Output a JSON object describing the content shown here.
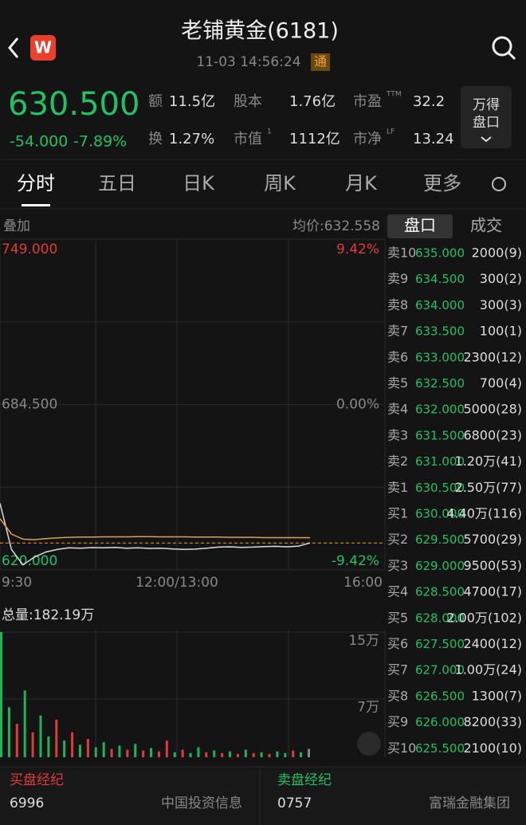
{
  "header": {
    "title": "老铺黄金(6181)",
    "time": "11-03 14:56:24",
    "badge": "通"
  },
  "quote": {
    "price": "630.500",
    "change": "-54.000",
    "change_pct": "-7.89%",
    "stats": [
      {
        "label": "额",
        "value": "11.5亿"
      },
      {
        "label": "股本",
        "value": "1.76亿"
      },
      {
        "label": "市盈",
        "sup": "TTM",
        "value": "32.2"
      },
      {
        "label": "换",
        "value": "1.27%"
      },
      {
        "label": "市值",
        "sup": "1",
        "value": "1112亿"
      },
      {
        "label": "市净",
        "sup": "LF",
        "value": "13.24"
      }
    ],
    "button": [
      "万得",
      "盘口"
    ]
  },
  "tabs": [
    "分时",
    "五日",
    "日K",
    "周K",
    "月K",
    "更多"
  ],
  "chart_data": [
    {
      "type": "line",
      "overlay_label": "叠加",
      "avg_label": "均价:632.558",
      "ylim": [
        620,
        749
      ],
      "yticks": [
        {
          "value": 749,
          "label": "749.000"
        },
        {
          "value": 684.5,
          "label": "684.500"
        },
        {
          "value": 620,
          "label": "620.000"
        }
      ],
      "pct_labels": [
        "9.42%",
        "0.00%",
        "-9.42%"
      ],
      "x_labels": [
        "9:30",
        "12:00/13:00",
        "16:00"
      ],
      "ref_line": {
        "value": 630.5,
        "color": "#f39c12"
      },
      "series": [
        {
          "color": "#dcdcdc",
          "values": [
            646,
            628,
            622,
            625,
            627,
            628,
            628.6,
            628.5,
            628.7,
            628.6,
            628.8,
            628.5,
            628.6,
            628.4,
            628.5,
            628.2,
            628.0,
            628.1,
            628.5,
            628.9,
            629.0,
            628.8,
            628.9,
            629.1,
            629.2,
            629.0,
            629.3,
            630.5
          ]
        },
        {
          "color": "#d9a15a",
          "values": [
            640,
            634,
            632,
            631.8,
            632.2,
            632.5,
            632.7,
            632.8,
            632.8,
            632.9,
            632.9,
            632.9,
            633.0,
            633.0,
            632.9,
            632.9,
            632.9,
            632.8,
            632.8,
            632.8,
            632.7,
            632.7,
            632.7,
            632.6,
            632.6,
            632.6,
            632.6,
            632.558
          ]
        }
      ]
    },
    {
      "type": "bar",
      "title": "总量:182.19万",
      "ylim": [
        0,
        150000
      ],
      "yticks": [
        {
          "value": 150000,
          "label": "15万"
        },
        {
          "value": 70000,
          "label": "7万"
        }
      ],
      "values": [
        150000,
        60000,
        40000,
        80000,
        30000,
        50000,
        25000,
        45000,
        20000,
        30000,
        15000,
        22000,
        12000,
        18000,
        10000,
        14000,
        9000,
        16000,
        8000,
        11000,
        7000,
        20000,
        6000,
        9000,
        5000,
        12000,
        6000,
        8000,
        5000,
        7000,
        4000,
        9000,
        5000,
        6000,
        4000,
        7000,
        5000,
        8000,
        6000,
        10000
      ],
      "colors": [
        "#1fb35a",
        "#1fb35a",
        "#e03b3b",
        "#1fb35a",
        "#e03b3b",
        "#1fb35a",
        "#1fb35a",
        "#e03b3b",
        "#1fb35a",
        "#e03b3b",
        "#1fb35a",
        "#e03b3b",
        "#1fb35a",
        "#1fb35a",
        "#e03b3b",
        "#1fb35a",
        "#e03b3b",
        "#1fb35a",
        "#e03b3b",
        "#1fb35a",
        "#e03b3b",
        "#e03b3b",
        "#1fb35a",
        "#e03b3b",
        "#1fb35a",
        "#1fb35a",
        "#e03b3b",
        "#1fb35a",
        "#e03b3b",
        "#1fb35a",
        "#e03b3b",
        "#1fb35a",
        "#e03b3b",
        "#1fb35a",
        "#e03b3b",
        "#1fb35a",
        "#1fb35a",
        "#e03b3b",
        "#1fb35a",
        "#888888"
      ]
    }
  ],
  "order_book": {
    "tabs": [
      "盘口",
      "成交"
    ],
    "rows": [
      [
        "卖10",
        "635.000",
        "2000(9)"
      ],
      [
        "卖9",
        "634.500",
        "300(2)"
      ],
      [
        "卖8",
        "634.000",
        "300(3)"
      ],
      [
        "卖7",
        "633.500",
        "100(1)"
      ],
      [
        "卖6",
        "633.000",
        "2300(12)"
      ],
      [
        "卖5",
        "632.500",
        "700(4)"
      ],
      [
        "卖4",
        "632.000",
        "5000(28)"
      ],
      [
        "卖3",
        "631.500",
        "6800(23)"
      ],
      [
        "卖2",
        "631.000",
        "1.20万(41)"
      ],
      [
        "卖1",
        "630.500",
        "2.50万(77)"
      ],
      [
        "买1",
        "630.000",
        "4.40万(116)"
      ],
      [
        "买2",
        "629.500",
        "5700(29)"
      ],
      [
        "买3",
        "629.000",
        "9500(53)"
      ],
      [
        "买4",
        "628.500",
        "4700(17)"
      ],
      [
        "买5",
        "628.000",
        "2.00万(102)"
      ],
      [
        "买6",
        "627.500",
        "2400(12)"
      ],
      [
        "买7",
        "627.000",
        "1.00万(24)"
      ],
      [
        "买8",
        "626.500",
        "1300(7)"
      ],
      [
        "买9",
        "626.000",
        "8200(33)"
      ],
      [
        "买10",
        "625.500",
        "2100(10)"
      ]
    ]
  },
  "brokers": {
    "buy": {
      "title": "买盘经纪",
      "code": "6996",
      "name": "中国投资信息"
    },
    "sell": {
      "title": "卖盘经纪",
      "code": "0757",
      "name": "富瑞金融集团"
    }
  }
}
